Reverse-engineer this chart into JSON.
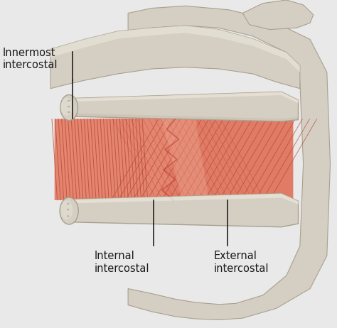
{
  "background_color": "#e9e9e9",
  "bone_color": "#d5cfc3",
  "bone_edge_color": "#a8a090",
  "bone_highlight": "#e8e3d8",
  "bone_shadow": "#b8b0a0",
  "muscle_base": "#e07b65",
  "muscle_light": "#e8957f",
  "muscle_dark": "#c45840",
  "muscle_line": "#b84535",
  "muscle_bg": "#d4604a",
  "label_innermost": "Innermost\nintercostal",
  "label_internal": "Internal\nintercostal",
  "label_external": "External\nintercostal",
  "fontsize": 10.5,
  "text_color": "#1a1a1a",
  "line_color": "#111111",
  "figsize": [
    4.74,
    4.62
  ],
  "dpi": 100
}
